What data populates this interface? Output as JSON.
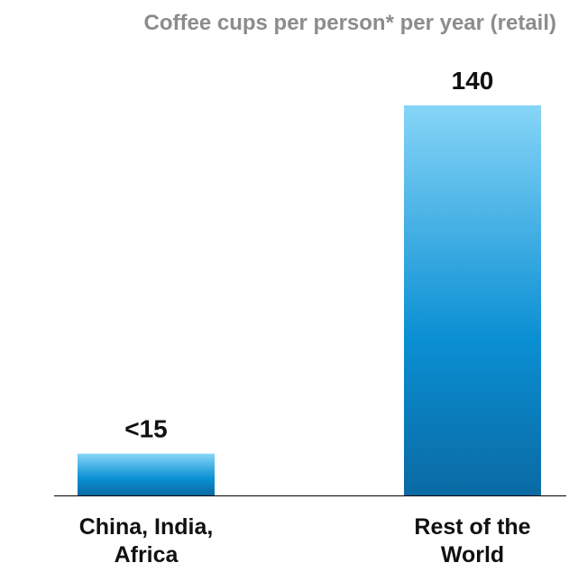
{
  "chart_data": {
    "type": "bar",
    "title": "Coffee cups per person* per year (retail)",
    "categories": [
      [
        "China, India,",
        "Africa"
      ],
      [
        "Rest of the",
        "World"
      ]
    ],
    "values": [
      15,
      140
    ],
    "value_labels": [
      "<15",
      "140"
    ],
    "xlabel": "",
    "ylabel": "",
    "ylim": [
      0,
      140
    ],
    "grid": false,
    "colors": {
      "bar_top": "#86d5f7",
      "bar_mid": "#0a8fd3",
      "bar_bottom": "#0a6aa3",
      "baseline": "#000000"
    }
  }
}
